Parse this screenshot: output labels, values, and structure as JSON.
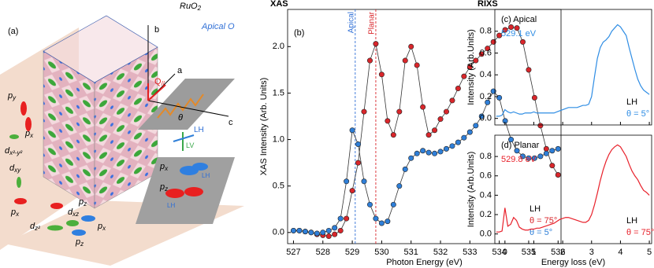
{
  "diagram": {
    "labels": [
      {
        "text": "(a)"
      },
      {
        "text": "RuO",
        "sub": "2"
      },
      {
        "text": "Apical O"
      },
      {
        "text": "b"
      },
      {
        "text": "a"
      },
      {
        "text": "c"
      },
      {
        "text": "Q",
        "sub": "//"
      },
      {
        "text": "θ"
      },
      {
        "text": "LV"
      },
      {
        "text": "LH"
      },
      {
        "text": "p",
        "sub": "y"
      },
      {
        "text": "p",
        "sub": "x"
      },
      {
        "text": "d",
        "sub": "x²-y²"
      },
      {
        "text": "d",
        "sub": "xy"
      },
      {
        "text": "p",
        "sub": "x"
      },
      {
        "text": "d",
        "sub": "xz"
      },
      {
        "text": "p",
        "sub": "z"
      },
      {
        "text": "d",
        "sub": "z²"
      },
      {
        "text": "p",
        "sub": "x"
      },
      {
        "text": "p",
        "sub": "z"
      },
      {
        "text": "p",
        "sub": "x"
      },
      {
        "text": "LH"
      },
      {
        "text": "p",
        "sub": "z"
      },
      {
        "text": "LH"
      }
    ]
  },
  "chart_data": [
    {
      "type": "line",
      "header": "XAS",
      "title": "(b)",
      "markers": true,
      "xlabel": "Photon Energy (eV)",
      "ylabel": "XAS Intensity (Arb. Units)",
      "xlim": [
        526.8,
        536.1
      ],
      "ylim": [
        -0.12,
        2.4
      ],
      "xticks": [
        527,
        528,
        529,
        530,
        531,
        532,
        533,
        534,
        535,
        536
      ],
      "yticks": [
        {
          "value": 0,
          "label": "0.0"
        },
        0.5,
        {
          "value": 1,
          "label": "1.0"
        },
        1.5,
        {
          "value": 2,
          "label": "2.0"
        }
      ],
      "vlines": [
        {
          "x": 529.1,
          "label": "Apical",
          "color": "#2f6fd6"
        },
        {
          "x": 529.8,
          "label": "Planar",
          "color": "#d9262b"
        }
      ],
      "legend": "lower right",
      "legend_title": "LH",
      "x": [
        527,
        527.2,
        527.4,
        527.6,
        527.8,
        528,
        528.2,
        528.4,
        528.6,
        528.8,
        529,
        529.2,
        529.4,
        529.6,
        529.8,
        530,
        530.2,
        530.4,
        530.6,
        530.8,
        531,
        531.2,
        531.4,
        531.6,
        531.8,
        532,
        532.2,
        532.4,
        532.6,
        532.8,
        533,
        533.2,
        533.4,
        533.6,
        533.8,
        534,
        534.2,
        534.4,
        534.6,
        534.8,
        535,
        535.2,
        535.4,
        535.6,
        535.8,
        536
      ],
      "series": [
        {
          "name": "θ = 75°",
          "color": "#d9262b",
          "values": [
            0.02,
            0.02,
            0.01,
            0.0,
            -0.02,
            -0.03,
            -0.04,
            -0.02,
            0.02,
            0.15,
            0.45,
            0.75,
            1.3,
            1.85,
            2.03,
            1.7,
            1.2,
            1.05,
            1.3,
            1.85,
            2.0,
            1.8,
            1.35,
            1.05,
            1.1,
            1.22,
            1.3,
            1.42,
            1.55,
            1.68,
            1.78,
            1.85,
            1.92,
            1.98,
            2.05,
            2.12,
            2.18,
            2.21,
            2.2,
            2.05,
            1.75,
            1.45,
            1.15,
            0.9,
            0.72,
            0.62
          ]
        },
        {
          "name": "θ = 5°",
          "color": "#2f7fd8",
          "values": [
            0.02,
            0.02,
            0.01,
            0.0,
            -0.01,
            0.0,
            0.02,
            0.05,
            0.15,
            0.55,
            1.1,
            0.95,
            0.55,
            0.3,
            0.15,
            0.1,
            0.12,
            0.3,
            0.5,
            0.68,
            0.8,
            0.85,
            0.88,
            0.86,
            0.85,
            0.87,
            0.9,
            0.93,
            0.97,
            1.02,
            1.08,
            1.15,
            1.25,
            1.4,
            1.52,
            1.45,
            1.2,
            1.0,
            0.88,
            0.82,
            0.8,
            0.8,
            0.82,
            0.85,
            0.88,
            0.9
          ]
        }
      ]
    },
    {
      "type": "line",
      "header": "RIXS",
      "title": "(c) Apical",
      "subtitle": "529.1 eV",
      "subtitle_color": "#2f8de4",
      "ylabel": "Intensity (Arb.Units)",
      "xtick_labels": false,
      "xlim": [
        -0.35,
        5.08
      ],
      "ylim": [
        -0.06,
        1.0
      ],
      "xticks": [
        0,
        1,
        2,
        3,
        4,
        5
      ],
      "yticks": [
        {
          "value": 0,
          "label": "0.0"
        },
        0.2,
        0.4,
        0.6,
        0.8
      ],
      "legend": "lower right",
      "legend_title": "LH",
      "x": [
        -0.3,
        -0.2,
        -0.1,
        0,
        0.1,
        0.2,
        0.3,
        0.4,
        0.5,
        0.6,
        0.7,
        0.8,
        0.9,
        1,
        1.1,
        1.2,
        1.3,
        1.4,
        1.5,
        1.6,
        1.7,
        1.8,
        1.9,
        2,
        2.1,
        2.2,
        2.3,
        2.4,
        2.5,
        2.6,
        2.7,
        2.8,
        2.9,
        3,
        3.1,
        3.2,
        3.3,
        3.4,
        3.5,
        3.6,
        3.7,
        3.8,
        3.9,
        4,
        4.1,
        4.2,
        4.3,
        4.4,
        4.5,
        4.6,
        4.7,
        4.8,
        4.9,
        5
      ],
      "series": [
        {
          "name": "θ = 5°",
          "color": "#2f8de4",
          "values": [
            0.02,
            0.02,
            0.03,
            0.08,
            0.06,
            0.05,
            0.06,
            0.05,
            0.04,
            0.04,
            0.05,
            0.05,
            0.05,
            0.06,
            0.05,
            0.05,
            0.05,
            0.05,
            0.05,
            0.05,
            0.05,
            0.06,
            0.07,
            0.08,
            0.09,
            0.1,
            0.1,
            0.1,
            0.1,
            0.11,
            0.12,
            0.12,
            0.13,
            0.2,
            0.38,
            0.55,
            0.65,
            0.7,
            0.72,
            0.75,
            0.8,
            0.83,
            0.86,
            0.84,
            0.8,
            0.76,
            0.65,
            0.55,
            0.45,
            0.36,
            0.3,
            0.26,
            0.24,
            0.22
          ]
        }
      ]
    },
    {
      "type": "line",
      "title": "(d) Planar",
      "subtitle": "529.8 eV",
      "subtitle_color": "#e8212b",
      "xlabel": "Energy loss (eV)",
      "ylabel": "Intensity (Arb.Units)",
      "xlim": [
        -0.35,
        5.08
      ],
      "ylim": [
        -0.1,
        1.02
      ],
      "xticks": [
        0,
        1,
        2,
        3,
        4,
        5
      ],
      "yticks": [
        {
          "value": 0,
          "label": "0.0"
        },
        0.2,
        0.4,
        0.6,
        0.8
      ],
      "legend": "lower right",
      "legend_title": "LH",
      "x": [
        -0.3,
        -0.2,
        -0.1,
        0,
        0.1,
        0.2,
        0.3,
        0.4,
        0.5,
        0.6,
        0.7,
        0.8,
        0.9,
        1,
        1.1,
        1.2,
        1.3,
        1.4,
        1.5,
        1.6,
        1.7,
        1.8,
        1.9,
        2,
        2.1,
        2.2,
        2.3,
        2.4,
        2.5,
        2.6,
        2.7,
        2.8,
        2.9,
        3,
        3.1,
        3.2,
        3.3,
        3.4,
        3.5,
        3.6,
        3.7,
        3.8,
        3.9,
        4,
        4.1,
        4.2,
        4.3,
        4.4,
        4.5,
        4.6,
        4.7,
        4.8,
        4.9,
        5
      ],
      "series": [
        {
          "name": "θ = 75°",
          "color": "#e8212b",
          "values": [
            0.02,
            0.02,
            0.03,
            0.27,
            0.08,
            0.1,
            0.17,
            0.14,
            0.07,
            0.05,
            0.04,
            0.04,
            0.05,
            0.05,
            0.06,
            0.06,
            0.07,
            0.08,
            0.09,
            0.1,
            0.11,
            0.13,
            0.15,
            0.16,
            0.17,
            0.17,
            0.16,
            0.15,
            0.14,
            0.13,
            0.12,
            0.12,
            0.14,
            0.2,
            0.3,
            0.42,
            0.55,
            0.66,
            0.75,
            0.82,
            0.87,
            0.9,
            0.92,
            0.9,
            0.85,
            0.8,
            0.72,
            0.65,
            0.6,
            0.56,
            0.5,
            0.45,
            0.43,
            0.4
          ]
        }
      ]
    }
  ]
}
